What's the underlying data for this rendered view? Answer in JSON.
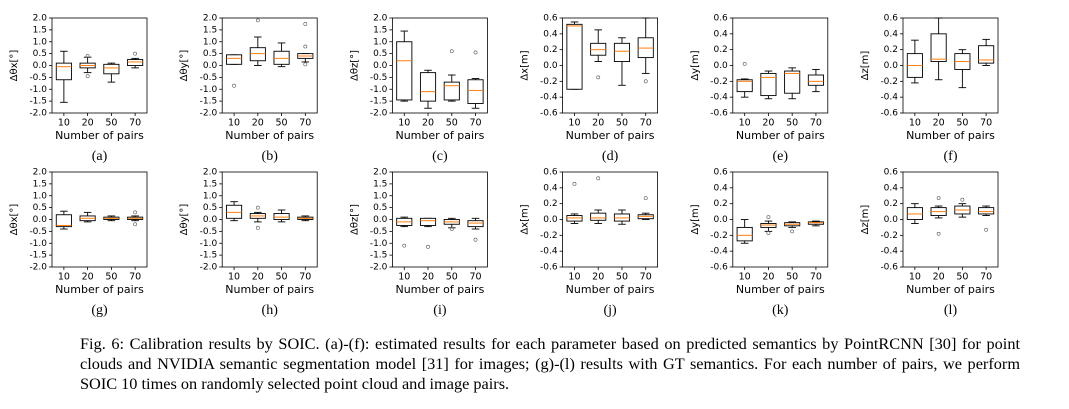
{
  "chart_data": [
    {
      "type": "box",
      "label": "(a)",
      "ylabel": "Δθx[°]",
      "xlabel": "Number of pairs",
      "categories": [
        "10",
        "20",
        "50",
        "70"
      ],
      "color": "#000000",
      "median_color": "#ff7f0e",
      "ylim": [
        -2,
        2
      ],
      "yticks": [
        {
          "value": -2,
          "label": "-2.0"
        },
        -1.5,
        {
          "value": -1,
          "label": "-1.0"
        },
        -0.5,
        {
          "value": 0,
          "label": "0.0"
        },
        0.5,
        {
          "value": 1,
          "label": "1.0"
        },
        1.5,
        {
          "value": 2,
          "label": "2.0"
        }
      ],
      "boxes": [
        {
          "low": -1.55,
          "q1": -0.6,
          "median": -0.05,
          "q3": 0.1,
          "high": 0.6
        },
        {
          "low": -0.3,
          "q1": -0.1,
          "median": 0.0,
          "q3": 0.1,
          "high": 0.35,
          "fliers": [
            -0.45,
            0.4
          ]
        },
        {
          "low": -0.7,
          "q1": -0.35,
          "median": -0.1,
          "q3": 0.05,
          "high": 0.1
        },
        {
          "low": -0.1,
          "q1": 0.0,
          "median": 0.15,
          "q3": 0.25,
          "high": 0.3,
          "fliers": [
            0.5
          ]
        }
      ]
    },
    {
      "type": "box",
      "label": "(b)",
      "ylabel": "Δθy[°]",
      "xlabel": "Number of pairs",
      "categories": [
        "10",
        "20",
        "50",
        "70"
      ],
      "color": "#000000",
      "median_color": "#ff7f0e",
      "ylim": [
        -2,
        2
      ],
      "yticks": [
        {
          "value": -2,
          "label": "-2.0"
        },
        -1.5,
        {
          "value": -1,
          "label": "-1.0"
        },
        -0.5,
        {
          "value": 0,
          "label": "0.0"
        },
        0.5,
        {
          "value": 1,
          "label": "1.0"
        },
        1.5,
        {
          "value": 2,
          "label": "2.0"
        }
      ],
      "boxes": [
        {
          "low": 0.05,
          "q1": 0.05,
          "median": 0.3,
          "q3": 0.45,
          "high": 0.45,
          "fliers": [
            -0.85
          ]
        },
        {
          "low": 0.0,
          "q1": 0.2,
          "median": 0.5,
          "q3": 0.75,
          "high": 1.2,
          "fliers": [
            1.9
          ]
        },
        {
          "low": -0.05,
          "q1": 0.05,
          "median": 0.3,
          "q3": 0.6,
          "high": 0.95
        },
        {
          "low": 0.15,
          "q1": 0.3,
          "median": 0.4,
          "q3": 0.5,
          "high": 0.5,
          "fliers": [
            1.75,
            0.8,
            0.05
          ]
        }
      ]
    },
    {
      "type": "box",
      "label": "(c)",
      "ylabel": "Δθz[°]",
      "xlabel": "Number of pairs",
      "categories": [
        "10",
        "20",
        "50",
        "70"
      ],
      "color": "#000000",
      "median_color": "#ff7f0e",
      "ylim": [
        -2,
        2
      ],
      "yticks": [
        {
          "value": -2,
          "label": "-2.0"
        },
        -1.5,
        {
          "value": -1,
          "label": "-1.0"
        },
        -0.5,
        {
          "value": 0,
          "label": "0.0"
        },
        0.5,
        {
          "value": 1,
          "label": "1.0"
        },
        1.5,
        {
          "value": 2,
          "label": "2.0"
        }
      ],
      "boxes": [
        {
          "low": -1.5,
          "q1": -1.45,
          "median": 0.2,
          "q3": 1.0,
          "high": 1.45
        },
        {
          "low": -1.8,
          "q1": -1.5,
          "median": -1.1,
          "q3": -0.3,
          "high": -0.2
        },
        {
          "low": -1.5,
          "q1": -1.45,
          "median": -0.85,
          "q3": -0.7,
          "high": -0.4,
          "fliers": [
            0.6
          ]
        },
        {
          "low": -1.8,
          "q1": -1.6,
          "median": -1.05,
          "q3": -0.6,
          "high": -0.55,
          "fliers": [
            0.55
          ]
        }
      ]
    },
    {
      "type": "box",
      "label": "(d)",
      "ylabel": "Δx[m]",
      "xlabel": "Number of pairs",
      "categories": [
        "10",
        "20",
        "50",
        "70"
      ],
      "color": "#000000",
      "median_color": "#ff7f0e",
      "ylim": [
        -0.6,
        0.6
      ],
      "yticks": [
        -0.6,
        -0.4,
        -0.2,
        {
          "value": 0,
          "label": "0.0"
        },
        0.2,
        0.4,
        0.6
      ],
      "boxes": [
        {
          "low": -0.3,
          "q1": -0.3,
          "median": 0.5,
          "q3": 0.52,
          "high": 0.55
        },
        {
          "low": 0.05,
          "q1": 0.13,
          "median": 0.2,
          "q3": 0.28,
          "high": 0.45,
          "fliers": [
            -0.15
          ]
        },
        {
          "low": -0.25,
          "q1": 0.05,
          "median": 0.18,
          "q3": 0.28,
          "high": 0.35
        },
        {
          "low": -0.1,
          "q1": 0.1,
          "median": 0.22,
          "q3": 0.35,
          "high": 0.6,
          "fliers": [
            -0.2
          ]
        }
      ]
    },
    {
      "type": "box",
      "label": "(e)",
      "ylabel": "Δy[m]",
      "xlabel": "Number of pairs",
      "categories": [
        "10",
        "20",
        "50",
        "70"
      ],
      "color": "#000000",
      "median_color": "#ff7f0e",
      "ylim": [
        -0.6,
        0.6
      ],
      "yticks": [
        -0.6,
        -0.4,
        -0.2,
        {
          "value": 0,
          "label": "0.0"
        },
        0.2,
        0.4,
        0.6
      ],
      "boxes": [
        {
          "low": -0.4,
          "q1": -0.33,
          "median": -0.2,
          "q3": -0.18,
          "high": -0.17,
          "fliers": [
            0.02
          ]
        },
        {
          "low": -0.42,
          "q1": -0.38,
          "median": -0.15,
          "q3": -0.1,
          "high": -0.07
        },
        {
          "low": -0.42,
          "q1": -0.35,
          "median": -0.1,
          "q3": -0.07,
          "high": -0.03
        },
        {
          "low": -0.33,
          "q1": -0.25,
          "median": -0.2,
          "q3": -0.12,
          "high": -0.05
        }
      ]
    },
    {
      "type": "box",
      "label": "(f)",
      "ylabel": "Δz[m]",
      "xlabel": "Number of pairs",
      "categories": [
        "10",
        "20",
        "50",
        "70"
      ],
      "color": "#000000",
      "median_color": "#ff7f0e",
      "ylim": [
        -0.6,
        0.6
      ],
      "yticks": [
        -0.6,
        -0.4,
        -0.2,
        {
          "value": 0,
          "label": "0.0"
        },
        0.2,
        0.4,
        0.6
      ],
      "boxes": [
        {
          "low": -0.22,
          "q1": -0.15,
          "median": 0.0,
          "q3": 0.15,
          "high": 0.32
        },
        {
          "low": -0.18,
          "q1": 0.05,
          "median": 0.08,
          "q3": 0.4,
          "high": 0.6
        },
        {
          "low": -0.28,
          "q1": -0.05,
          "median": 0.05,
          "q3": 0.15,
          "high": 0.2
        },
        {
          "low": 0.0,
          "q1": 0.03,
          "median": 0.07,
          "q3": 0.25,
          "high": 0.33
        }
      ]
    },
    {
      "type": "box",
      "label": "(g)",
      "ylabel": "Δθx[°]",
      "xlabel": "Number of pairs",
      "categories": [
        "10",
        "20",
        "50",
        "70"
      ],
      "color": "#000000",
      "median_color": "#ff7f0e",
      "ylim": [
        -2,
        2
      ],
      "yticks": [
        {
          "value": -2,
          "label": "-2.0"
        },
        -1.5,
        {
          "value": -1,
          "label": "-1.0"
        },
        -0.5,
        {
          "value": 0,
          "label": "0.0"
        },
        0.5,
        {
          "value": 1,
          "label": "1.0"
        },
        1.5,
        {
          "value": 2,
          "label": "2.0"
        }
      ],
      "boxes": [
        {
          "low": -0.4,
          "q1": -0.3,
          "median": -0.25,
          "q3": 0.2,
          "high": 0.35
        },
        {
          "low": -0.1,
          "q1": -0.05,
          "median": 0.05,
          "q3": 0.15,
          "high": 0.3
        },
        {
          "low": -0.05,
          "q1": 0.0,
          "median": 0.05,
          "q3": 0.1,
          "high": 0.15
        },
        {
          "low": -0.05,
          "q1": 0.0,
          "median": 0.05,
          "q3": 0.1,
          "high": 0.15,
          "fliers": [
            0.3,
            -0.2
          ]
        }
      ]
    },
    {
      "type": "box",
      "label": "(h)",
      "ylabel": "Δθy[°]",
      "xlabel": "Number of pairs",
      "categories": [
        "10",
        "20",
        "50",
        "70"
      ],
      "color": "#000000",
      "median_color": "#ff7f0e",
      "ylim": [
        -2,
        2
      ],
      "yticks": [
        {
          "value": -2,
          "label": "-2.0"
        },
        -1.5,
        {
          "value": -1,
          "label": "-1.0"
        },
        -0.5,
        {
          "value": 0,
          "label": "0.0"
        },
        0.5,
        {
          "value": 1,
          "label": "1.0"
        },
        1.5,
        {
          "value": 2,
          "label": "2.0"
        }
      ],
      "boxes": [
        {
          "low": -0.05,
          "q1": 0.05,
          "median": 0.3,
          "q3": 0.6,
          "high": 0.75
        },
        {
          "low": -0.1,
          "q1": 0.05,
          "median": 0.15,
          "q3": 0.25,
          "high": 0.3,
          "fliers": [
            0.5,
            -0.35
          ]
        },
        {
          "low": -0.1,
          "q1": 0.0,
          "median": 0.1,
          "q3": 0.25,
          "high": 0.4
        },
        {
          "low": -0.05,
          "q1": 0.0,
          "median": 0.05,
          "q3": 0.1,
          "high": 0.15
        }
      ]
    },
    {
      "type": "box",
      "label": "(i)",
      "ylabel": "Δθz[°]",
      "xlabel": "Number of pairs",
      "categories": [
        "10",
        "20",
        "50",
        "70"
      ],
      "color": "#000000",
      "median_color": "#ff7f0e",
      "ylim": [
        -2,
        2
      ],
      "yticks": [
        {
          "value": -2,
          "label": "-2.0"
        },
        -1.5,
        {
          "value": -1,
          "label": "-1.0"
        },
        -0.5,
        {
          "value": 0,
          "label": "0.0"
        },
        0.5,
        {
          "value": 1,
          "label": "1.0"
        },
        1.5,
        {
          "value": 2,
          "label": "2.0"
        }
      ],
      "boxes": [
        {
          "low": -0.3,
          "q1": -0.25,
          "median": -0.1,
          "q3": 0.05,
          "high": 0.1,
          "fliers": [
            -1.1
          ]
        },
        {
          "low": -0.3,
          "q1": -0.25,
          "median": -0.05,
          "q3": 0.05,
          "high": 0.05,
          "fliers": [
            -1.15
          ]
        },
        {
          "low": -0.35,
          "q1": -0.2,
          "median": -0.1,
          "q3": 0.0,
          "high": 0.05,
          "fliers": [
            -0.4
          ]
        },
        {
          "low": -0.4,
          "q1": -0.3,
          "median": -0.15,
          "q3": -0.05,
          "high": 0.05,
          "fliers": [
            -0.85
          ]
        }
      ]
    },
    {
      "type": "box",
      "label": "(j)",
      "ylabel": "Δx[m]",
      "xlabel": "Number of pairs",
      "categories": [
        "10",
        "20",
        "50",
        "70"
      ],
      "color": "#000000",
      "median_color": "#ff7f0e",
      "ylim": [
        -0.6,
        0.6
      ],
      "yticks": [
        -0.6,
        -0.4,
        -0.2,
        {
          "value": 0,
          "label": "0.0"
        },
        0.2,
        0.4,
        0.6
      ],
      "boxes": [
        {
          "low": -0.05,
          "q1": -0.02,
          "median": 0.02,
          "q3": 0.05,
          "high": 0.07,
          "fliers": [
            0.45
          ]
        },
        {
          "low": -0.05,
          "q1": -0.01,
          "median": 0.02,
          "q3": 0.08,
          "high": 0.12,
          "fliers": [
            0.52
          ]
        },
        {
          "low": -0.06,
          "q1": -0.02,
          "median": 0.02,
          "q3": 0.07,
          "high": 0.12
        },
        {
          "low": 0.0,
          "q1": 0.01,
          "median": 0.04,
          "q3": 0.06,
          "high": 0.08,
          "fliers": [
            0.27
          ]
        }
      ]
    },
    {
      "type": "box",
      "label": "(k)",
      "ylabel": "Δy[m]",
      "xlabel": "Number of pairs",
      "categories": [
        "10",
        "20",
        "50",
        "70"
      ],
      "color": "#000000",
      "median_color": "#ff7f0e",
      "ylim": [
        -0.6,
        0.6
      ],
      "yticks": [
        -0.6,
        -0.4,
        -0.2,
        {
          "value": 0,
          "label": "0.0"
        },
        0.2,
        0.4,
        0.6
      ],
      "boxes": [
        {
          "low": -0.3,
          "q1": -0.27,
          "median": -0.2,
          "q3": -0.1,
          "high": 0.0
        },
        {
          "low": -0.15,
          "q1": -0.1,
          "median": -0.07,
          "q3": -0.05,
          "high": -0.02,
          "fliers": [
            0.03,
            -0.17
          ]
        },
        {
          "low": -0.1,
          "q1": -0.08,
          "median": -0.06,
          "q3": -0.04,
          "high": -0.03,
          "fliers": [
            -0.15
          ]
        },
        {
          "low": -0.08,
          "q1": -0.06,
          "median": -0.04,
          "q3": -0.03,
          "high": -0.02
        }
      ]
    },
    {
      "type": "box",
      "label": "(l)",
      "ylabel": "Δz[m]",
      "xlabel": "Number of pairs",
      "categories": [
        "10",
        "20",
        "50",
        "70"
      ],
      "color": "#000000",
      "median_color": "#ff7f0e",
      "ylim": [
        -0.6,
        0.6
      ],
      "yticks": [
        -0.6,
        -0.4,
        -0.2,
        {
          "value": 0,
          "label": "0.0"
        },
        0.2,
        0.4,
        0.6
      ],
      "boxes": [
        {
          "low": -0.05,
          "q1": 0.0,
          "median": 0.07,
          "q3": 0.15,
          "high": 0.2
        },
        {
          "low": 0.02,
          "q1": 0.05,
          "median": 0.1,
          "q3": 0.15,
          "high": 0.17,
          "fliers": [
            0.27,
            -0.18
          ]
        },
        {
          "low": 0.03,
          "q1": 0.07,
          "median": 0.12,
          "q3": 0.17,
          "high": 0.2,
          "fliers": [
            0.25
          ]
        },
        {
          "low": 0.05,
          "q1": 0.07,
          "median": 0.1,
          "q3": 0.15,
          "high": 0.17,
          "fliers": [
            -0.13
          ]
        }
      ]
    }
  ],
  "caption": "Fig. 6: Calibration results by SOIC. (a)-(f): estimated results for each parameter based on predicted semantics by PointRCNN [30] for point clouds and NVIDIA semantic segmentation model [31] for images; (g)-(l) results with GT semantics. For each number of pairs, we perform SOIC 10 times on randomly selected point cloud and image pairs."
}
